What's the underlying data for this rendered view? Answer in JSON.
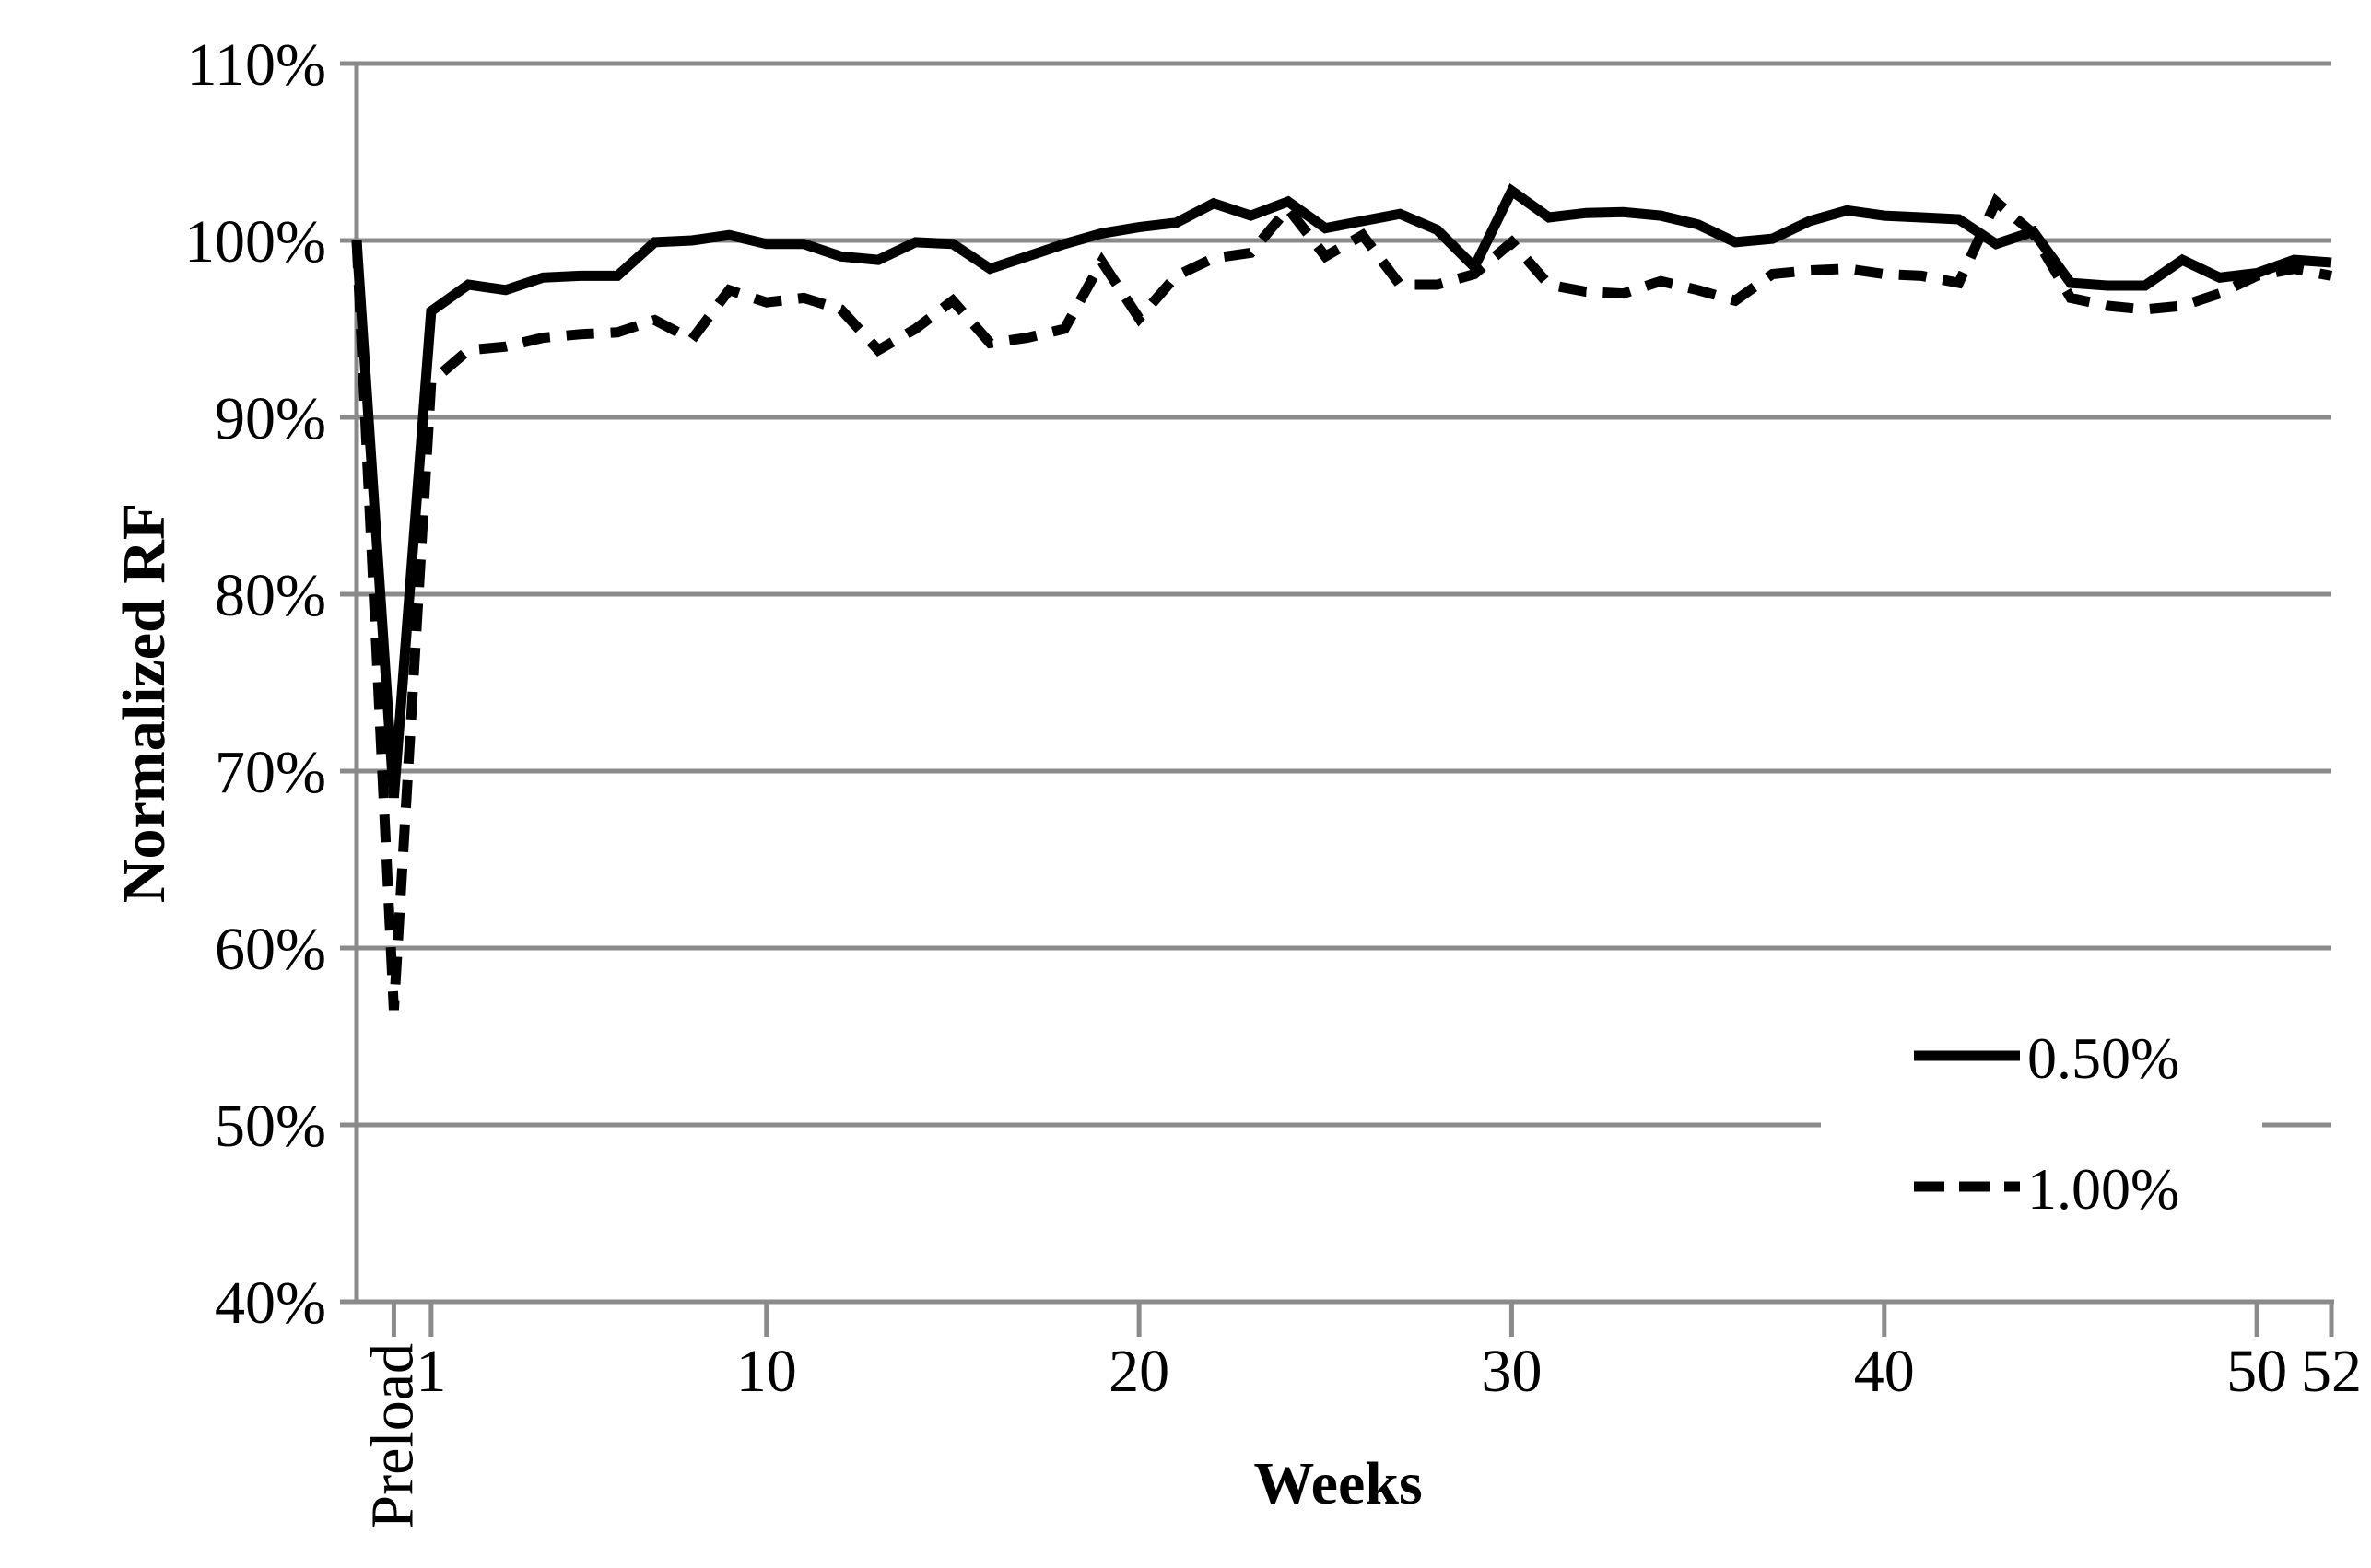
{
  "chart": {
    "title": "",
    "y_axis_title": "Normalized RF",
    "x_axis_title": "Weeks",
    "y_tick_labels": [
      "110%",
      "100%",
      "90%",
      "80%",
      "70%",
      "60%",
      "50%",
      "40%"
    ],
    "x_tick_labels": [
      "Preload",
      "1",
      "10",
      "20",
      "30",
      "40",
      "50",
      "52"
    ],
    "legend": {
      "items": [
        {
          "label": "0.50%",
          "style": "solid"
        },
        {
          "label": "1.00%",
          "style": "dashed"
        }
      ],
      "position": "inside-lower-right"
    }
  },
  "colors": {
    "grid": "#8a8a8a",
    "axis": "#8a8a8a",
    "series": "#000000",
    "background": "#ffffff",
    "text": "#000000"
  },
  "chart_data": {
    "type": "line",
    "title": "",
    "xlabel": "Weeks",
    "ylabel": "Normalized RF",
    "ylim": [
      40,
      110
    ],
    "y_unit": "%",
    "y_ticks": [
      110,
      100,
      90,
      80,
      70,
      60,
      50,
      40
    ],
    "grid": "horizontal gridlines every 10%, gray; 50% gridline interrupted by legend",
    "legend_position": "inside lower right",
    "x_categories": [
      "",
      "Preload",
      "1",
      "2",
      "3",
      "4",
      "5",
      "6",
      "7",
      "8",
      "9",
      "10",
      "11",
      "12",
      "13",
      "14",
      "15",
      "16",
      "17",
      "18",
      "19",
      "20",
      "21",
      "22",
      "23",
      "24",
      "25",
      "26",
      "27",
      "28",
      "29",
      "30",
      "31",
      "32",
      "33",
      "34",
      "35",
      "36",
      "37",
      "38",
      "39",
      "40",
      "41",
      "42",
      "43",
      "44",
      "45",
      "46",
      "47",
      "48",
      "49",
      "50",
      "51",
      "52"
    ],
    "x_tick_labels_shown": [
      "Preload",
      "1",
      "10",
      "20",
      "30",
      "40",
      "50",
      "52"
    ],
    "series": [
      {
        "name": "0.50%",
        "line_style": "solid",
        "color": "#000000",
        "values": [
          100,
          68.5,
          96.0,
          97.5,
          97.2,
          97.9,
          98.0,
          98.0,
          99.9,
          100.0,
          100.3,
          99.8,
          99.8,
          99.1,
          98.9,
          99.9,
          99.8,
          98.4,
          99.1,
          99.8,
          100.4,
          100.75,
          101.0,
          102.1,
          101.4,
          102.2,
          100.7,
          101.1,
          101.5,
          100.6,
          98.5,
          102.8,
          101.3,
          101.55,
          101.6,
          101.4,
          100.9,
          99.9,
          100.1,
          101.1,
          101.7,
          101.4,
          101.3,
          101.2,
          99.8,
          100.5,
          97.6,
          97.45,
          97.45,
          98.9,
          97.9,
          98.15,
          98.9,
          98.75
        ]
      },
      {
        "name": "1.00%",
        "line_style": "dashed",
        "color": "#000000",
        "values": [
          100,
          56.5,
          92.0,
          93.8,
          94.0,
          94.5,
          94.7,
          94.8,
          95.5,
          94.4,
          97.2,
          96.5,
          96.75,
          96.1,
          93.8,
          95.0,
          96.6,
          94.2,
          94.5,
          95.0,
          98.8,
          95.6,
          98.0,
          99.0,
          99.3,
          101.8,
          99.1,
          100.3,
          97.5,
          97.5,
          98.1,
          99.9,
          97.5,
          97.1,
          97.0,
          97.7,
          97.2,
          96.6,
          98.1,
          98.3,
          98.4,
          98.1,
          98.0,
          97.6,
          102.2,
          100.4,
          96.75,
          96.3,
          96.1,
          96.3,
          97.0,
          98.0,
          98.4,
          98.0
        ]
      }
    ]
  }
}
